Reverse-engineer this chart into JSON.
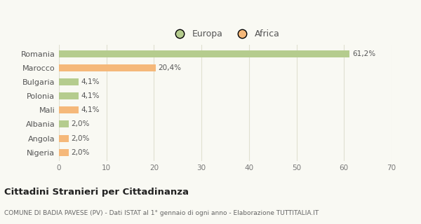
{
  "categories": [
    "Romania",
    "Marocco",
    "Bulgaria",
    "Polonia",
    "Mali",
    "Albania",
    "Angola",
    "Nigeria"
  ],
  "values": [
    61.2,
    20.4,
    4.1,
    4.1,
    4.1,
    2.0,
    2.0,
    2.0
  ],
  "labels": [
    "61,2%",
    "20,4%",
    "4,1%",
    "4,1%",
    "4,1%",
    "2,0%",
    "2,0%",
    "2,0%"
  ],
  "colors": [
    "#b5cc8e",
    "#f5b87a",
    "#b5cc8e",
    "#b5cc8e",
    "#f5b87a",
    "#b5cc8e",
    "#f5b87a",
    "#f5b87a"
  ],
  "legend": [
    {
      "label": "Europa",
      "color": "#b5cc8e"
    },
    {
      "label": "Africa",
      "color": "#f5b87a"
    }
  ],
  "xlim": [
    0,
    70
  ],
  "xticks": [
    0,
    10,
    20,
    30,
    40,
    50,
    60,
    70
  ],
  "title": "Cittadini Stranieri per Cittadinanza",
  "subtitle": "COMUNE DI BADIA PAVESE (PV) - Dati ISTAT al 1° gennaio di ogni anno - Elaborazione TUTTITALIA.IT",
  "background_color": "#f9f9f3",
  "grid_color": "#e0e0d0"
}
